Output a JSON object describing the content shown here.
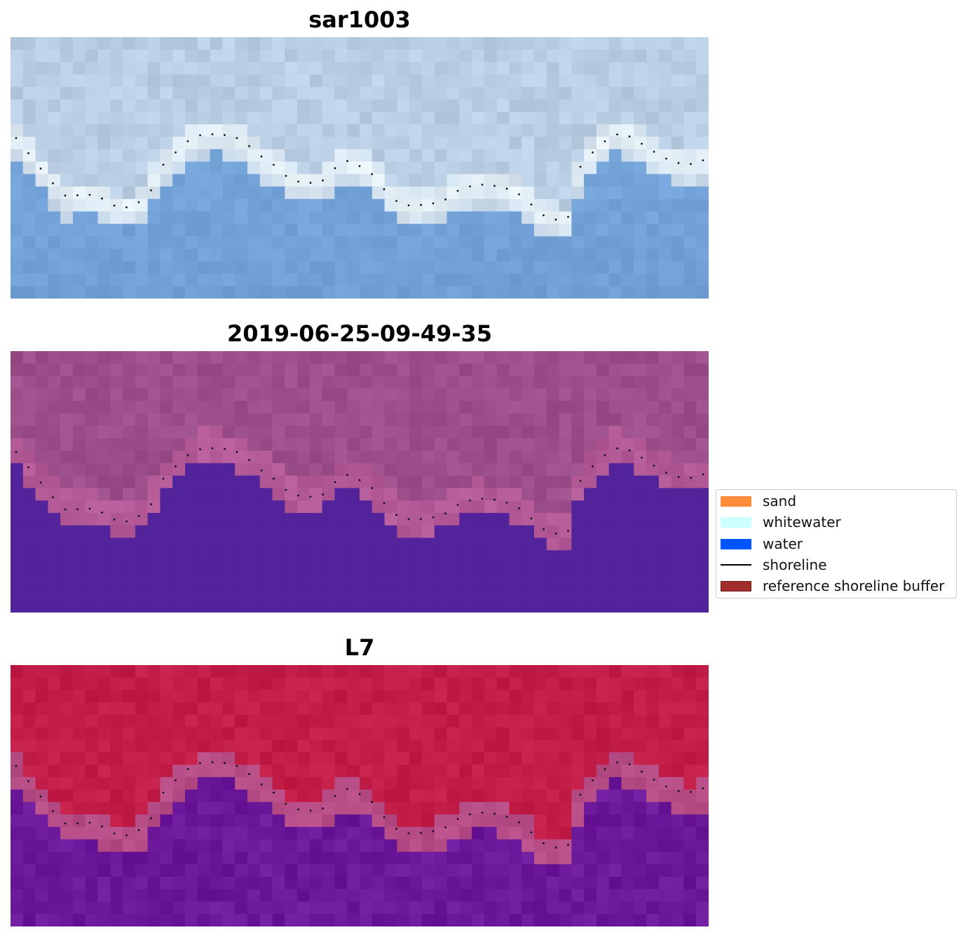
{
  "panels": [
    {
      "title": "sar1003",
      "style": "rgb"
    },
    {
      "title": "2019-06-25-09-49-35",
      "style": "classification"
    },
    {
      "title": "L7",
      "style": "index"
    }
  ],
  "legend": {
    "items": [
      {
        "label": "sand",
        "color": "#ff8c3a",
        "kind": "patch"
      },
      {
        "label": "whitewater",
        "color": "#ccffff",
        "kind": "patch"
      },
      {
        "label": "water",
        "color": "#0055ff",
        "kind": "patch"
      },
      {
        "label": "shoreline",
        "color": "#000000",
        "kind": "line"
      },
      {
        "label": "reference shoreline buffer",
        "color": "#a02c2c",
        "kind": "patch"
      }
    ]
  },
  "colors": {
    "rgb_land": "#b9cde3",
    "rgb_surf": "#eaf4f8",
    "rgb_water": "#7aa9dc",
    "class_land": "#9c4e8a",
    "class_water": "#52239a",
    "index_land": "#c21d47",
    "index_edge": "#b64c86",
    "index_water": "#6c189a",
    "shoreline_points": "#000000"
  }
}
